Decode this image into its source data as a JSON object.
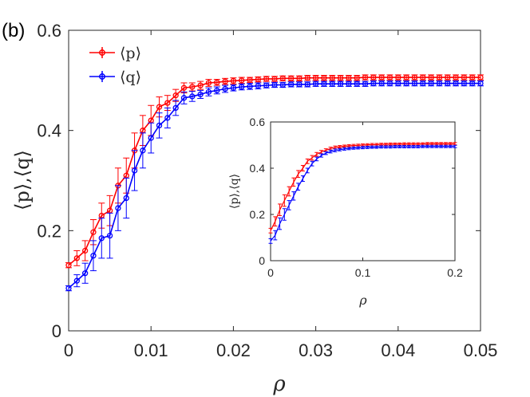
{
  "panel_label": "(b)",
  "colors": {
    "p": "#ff0000",
    "q": "#0000ff",
    "axes": "#262626",
    "background": "#ffffff"
  },
  "chart_data": [
    {
      "type": "line",
      "role": "main",
      "xlabel": "ρ",
      "ylabel": "⟨p⟩,⟨q⟩",
      "xlim": [
        0,
        0.05
      ],
      "ylim": [
        0,
        0.6
      ],
      "xticks": [
        0,
        0.01,
        0.02,
        0.03,
        0.04,
        0.05
      ],
      "xtick_labels": [
        "0",
        "0.01",
        "0.02",
        "0.03",
        "0.04",
        "0.05"
      ],
      "yticks": [
        0,
        0.2,
        0.4,
        0.6
      ],
      "ytick_labels": [
        "0",
        "0.2",
        "0.4",
        "0.6"
      ],
      "legend": {
        "location": "top-left",
        "entries": [
          "⟨p⟩",
          "⟨q⟩"
        ]
      },
      "x": [
        0,
        0.001,
        0.002,
        0.003,
        0.004,
        0.005,
        0.006,
        0.007,
        0.008,
        0.009,
        0.01,
        0.011,
        0.012,
        0.013,
        0.014,
        0.015,
        0.016,
        0.017,
        0.018,
        0.019,
        0.02,
        0.021,
        0.022,
        0.023,
        0.024,
        0.025,
        0.026,
        0.027,
        0.028,
        0.029,
        0.03,
        0.031,
        0.032,
        0.033,
        0.034,
        0.035,
        0.036,
        0.037,
        0.038,
        0.039,
        0.04,
        0.041,
        0.042,
        0.043,
        0.044,
        0.045,
        0.046,
        0.047,
        0.048,
        0.049,
        0.05
      ],
      "series": [
        {
          "name": "⟨p⟩",
          "color": "#ff0000",
          "values": [
            0.131,
            0.145,
            0.16,
            0.197,
            0.23,
            0.24,
            0.29,
            0.31,
            0.36,
            0.4,
            0.42,
            0.447,
            0.455,
            0.47,
            0.485,
            0.487,
            0.49,
            0.495,
            0.496,
            0.498,
            0.499,
            0.5,
            0.501,
            0.502,
            0.503,
            0.503,
            0.504,
            0.504,
            0.504,
            0.505,
            0.505,
            0.505,
            0.505,
            0.505,
            0.505,
            0.505,
            0.506,
            0.506,
            0.506,
            0.506,
            0.506,
            0.506,
            0.506,
            0.506,
            0.506,
            0.506,
            0.506,
            0.506,
            0.506,
            0.506,
            0.506
          ],
          "errors": [
            0.005,
            0.015,
            0.02,
            0.025,
            0.025,
            0.03,
            0.035,
            0.035,
            0.035,
            0.03,
            0.03,
            0.02,
            0.015,
            0.012,
            0.01,
            0.008,
            0.008,
            0.007,
            0.006,
            0.006,
            0.006,
            0.006,
            0.005,
            0.005,
            0.005,
            0.005,
            0.005,
            0.005,
            0.005,
            0.005,
            0.005,
            0.005,
            0.005,
            0.005,
            0.005,
            0.005,
            0.005,
            0.005,
            0.005,
            0.005,
            0.005,
            0.005,
            0.005,
            0.005,
            0.005,
            0.005,
            0.005,
            0.005,
            0.005,
            0.005,
            0.005
          ]
        },
        {
          "name": "⟨q⟩",
          "color": "#0000ff",
          "values": [
            0.085,
            0.1,
            0.115,
            0.15,
            0.185,
            0.19,
            0.245,
            0.265,
            0.32,
            0.36,
            0.385,
            0.41,
            0.425,
            0.445,
            0.465,
            0.468,
            0.472,
            0.477,
            0.48,
            0.483,
            0.485,
            0.487,
            0.488,
            0.489,
            0.49,
            0.491,
            0.491,
            0.492,
            0.492,
            0.492,
            0.493,
            0.493,
            0.493,
            0.493,
            0.493,
            0.493,
            0.493,
            0.494,
            0.494,
            0.494,
            0.494,
            0.494,
            0.494,
            0.494,
            0.494,
            0.494,
            0.494,
            0.494,
            0.494,
            0.494,
            0.494
          ],
          "errors": [
            0.005,
            0.012,
            0.02,
            0.03,
            0.04,
            0.045,
            0.045,
            0.04,
            0.04,
            0.035,
            0.03,
            0.025,
            0.02,
            0.015,
            0.012,
            0.01,
            0.008,
            0.008,
            0.007,
            0.007,
            0.006,
            0.006,
            0.006,
            0.006,
            0.005,
            0.005,
            0.005,
            0.005,
            0.005,
            0.005,
            0.005,
            0.005,
            0.005,
            0.005,
            0.005,
            0.005,
            0.005,
            0.005,
            0.005,
            0.005,
            0.005,
            0.005,
            0.005,
            0.005,
            0.005,
            0.005,
            0.005,
            0.005,
            0.005,
            0.005,
            0.005
          ]
        }
      ]
    },
    {
      "type": "line",
      "role": "inset",
      "xlabel": "ρ",
      "ylabel": "⟨p⟩,⟨q⟩",
      "xlim": [
        0,
        0.2
      ],
      "ylim": [
        0,
        0.6
      ],
      "xticks": [
        0,
        0.1,
        0.2
      ],
      "xtick_labels": [
        "0",
        "0.1",
        "0.2"
      ],
      "yticks": [
        0,
        0.2,
        0.4,
        0.6
      ],
      "ytick_labels": [
        "0",
        "0.2",
        "0.4",
        "0.6"
      ],
      "x": [
        0,
        0.005,
        0.01,
        0.015,
        0.02,
        0.025,
        0.03,
        0.035,
        0.04,
        0.045,
        0.05,
        0.055,
        0.06,
        0.065,
        0.07,
        0.075,
        0.08,
        0.085,
        0.09,
        0.095,
        0.1,
        0.105,
        0.11,
        0.115,
        0.12,
        0.125,
        0.13,
        0.135,
        0.14,
        0.145,
        0.15,
        0.155,
        0.16,
        0.165,
        0.17,
        0.175,
        0.18,
        0.185,
        0.19,
        0.195,
        0.2
      ],
      "series": [
        {
          "name": "⟨p⟩",
          "color": "#ff0000",
          "values": [
            0.13,
            0.17,
            0.22,
            0.26,
            0.3,
            0.34,
            0.375,
            0.4,
            0.43,
            0.445,
            0.46,
            0.47,
            0.478,
            0.485,
            0.49,
            0.493,
            0.495,
            0.497,
            0.498,
            0.499,
            0.5,
            0.501,
            0.502,
            0.502,
            0.503,
            0.503,
            0.504,
            0.504,
            0.504,
            0.505,
            0.505,
            0.505,
            0.505,
            0.505,
            0.506,
            0.506,
            0.506,
            0.506,
            0.506,
            0.506,
            0.506
          ],
          "errors": [
            0.01,
            0.02,
            0.025,
            0.025,
            0.02,
            0.018,
            0.015,
            0.012,
            0.01,
            0.01,
            0.008,
            0.007,
            0.006,
            0.006,
            0.006,
            0.005,
            0.005,
            0.005,
            0.005,
            0.005,
            0.005,
            0.005,
            0.005,
            0.005,
            0.005,
            0.005,
            0.005,
            0.005,
            0.005,
            0.005,
            0.005,
            0.005,
            0.005,
            0.005,
            0.005,
            0.005,
            0.005,
            0.005,
            0.005,
            0.005,
            0.005
          ]
        },
        {
          "name": "⟨q⟩",
          "color": "#0000ff",
          "values": [
            0.085,
            0.11,
            0.16,
            0.2,
            0.24,
            0.28,
            0.32,
            0.355,
            0.39,
            0.42,
            0.44,
            0.455,
            0.465,
            0.472,
            0.477,
            0.48,
            0.483,
            0.485,
            0.487,
            0.488,
            0.489,
            0.49,
            0.491,
            0.491,
            0.492,
            0.492,
            0.492,
            0.493,
            0.493,
            0.493,
            0.493,
            0.493,
            0.493,
            0.494,
            0.494,
            0.494,
            0.494,
            0.494,
            0.494,
            0.494,
            0.494
          ],
          "errors": [
            0.01,
            0.02,
            0.025,
            0.025,
            0.02,
            0.018,
            0.015,
            0.012,
            0.01,
            0.01,
            0.008,
            0.007,
            0.006,
            0.006,
            0.006,
            0.005,
            0.005,
            0.005,
            0.005,
            0.005,
            0.005,
            0.005,
            0.005,
            0.005,
            0.005,
            0.005,
            0.005,
            0.005,
            0.005,
            0.005,
            0.005,
            0.005,
            0.005,
            0.005,
            0.005,
            0.005,
            0.005,
            0.005,
            0.005,
            0.005,
            0.005
          ]
        }
      ]
    }
  ]
}
